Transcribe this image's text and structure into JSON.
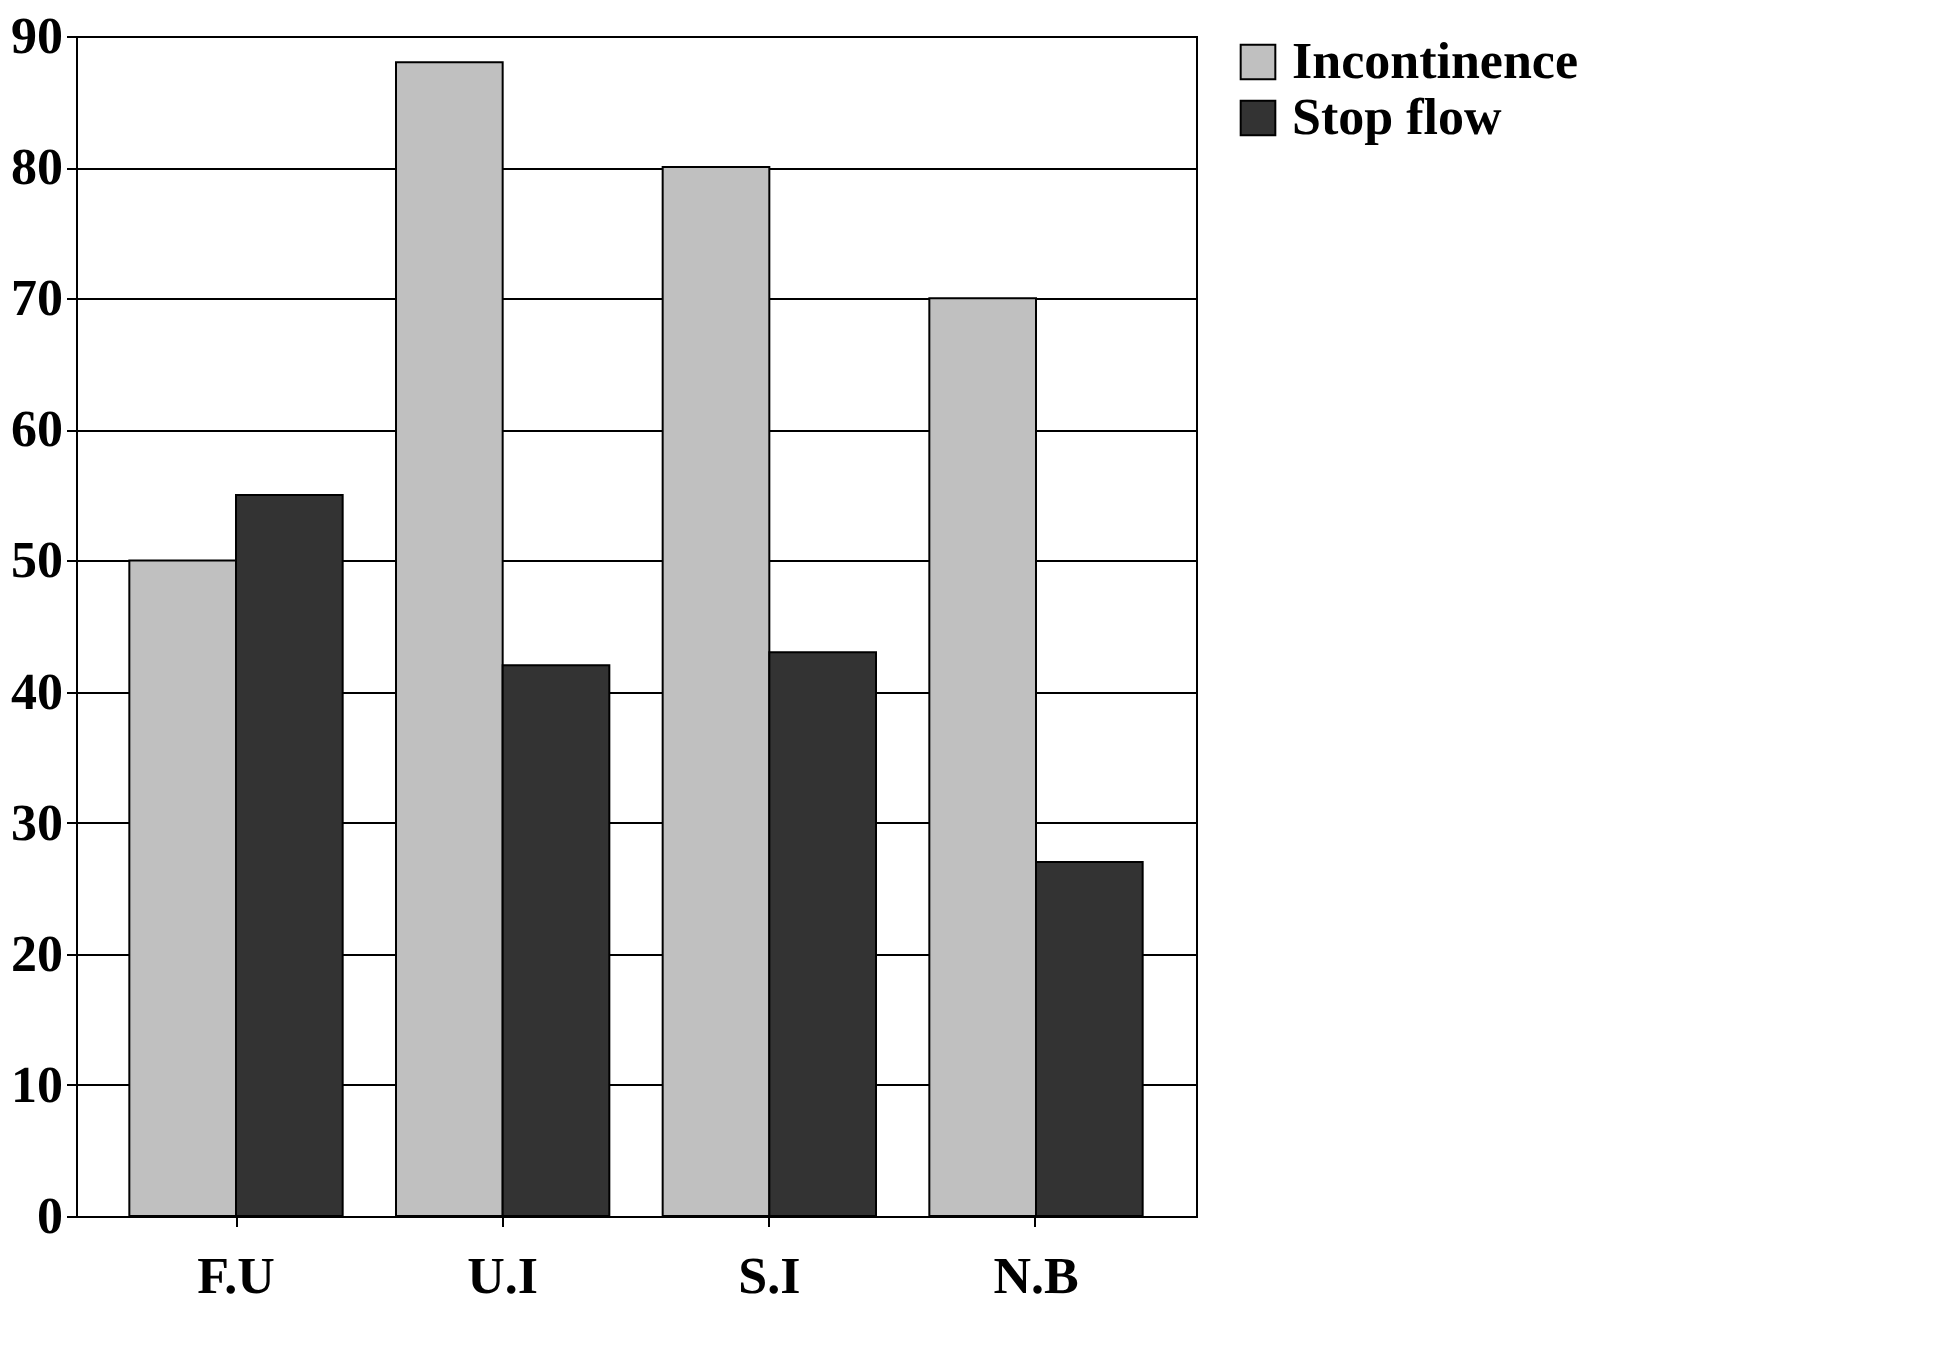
{
  "chart_data": {
    "type": "bar",
    "categories": [
      "F.U",
      "U.I",
      "S.I",
      "N.B"
    ],
    "series": [
      {
        "name": "Incontinence",
        "color": "#c0c0c0",
        "values": [
          50,
          88,
          80,
          70
        ]
      },
      {
        "name": "Stop flow",
        "color": "#333333",
        "values": [
          55,
          42,
          43,
          27
        ]
      }
    ],
    "ylim": [
      0,
      90
    ],
    "yticks": [
      0,
      10,
      20,
      30,
      40,
      50,
      60,
      70,
      80,
      90
    ],
    "grid": "y",
    "legend": "right"
  }
}
